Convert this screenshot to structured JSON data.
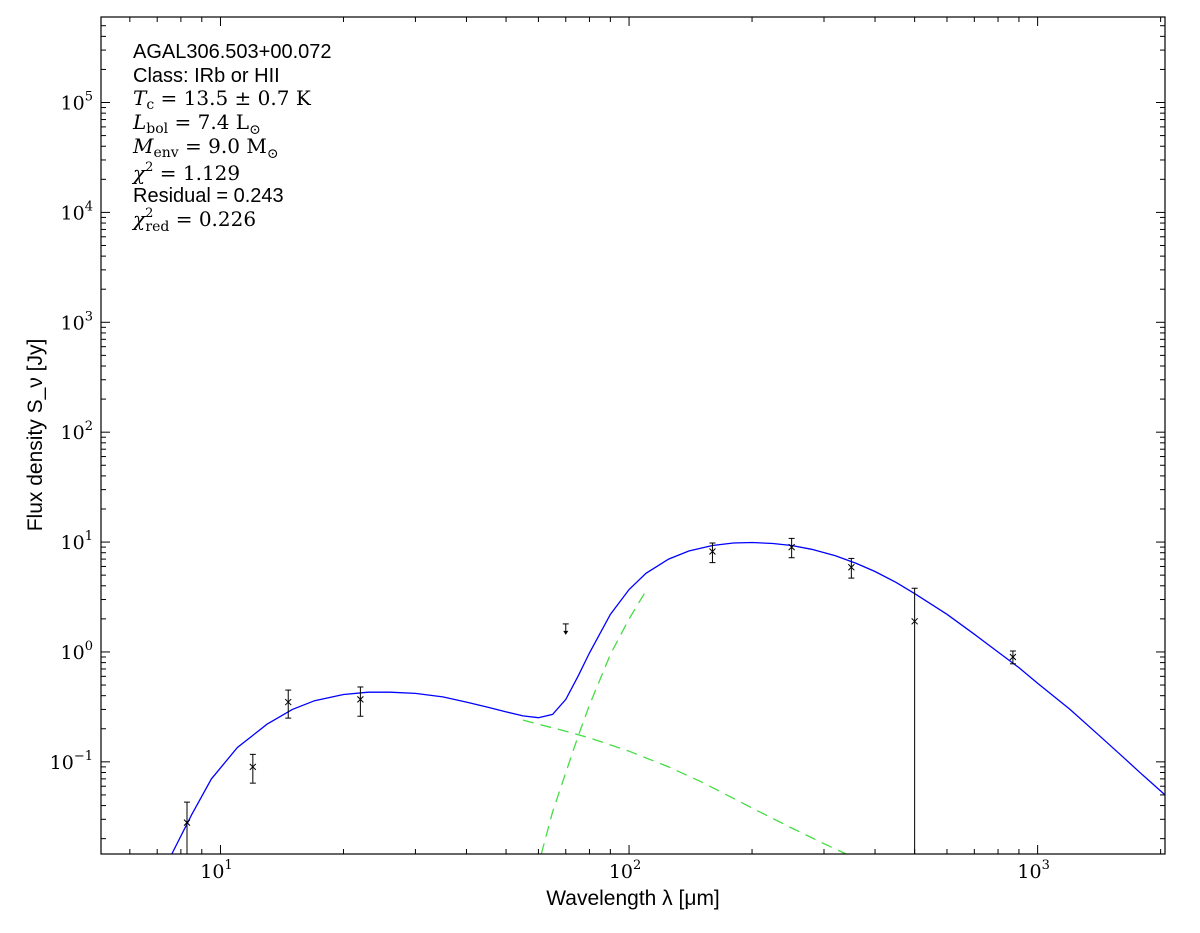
{
  "chart_data": {
    "type": "scatter",
    "source_name": "AGAL306.503+00.072",
    "xlabel": "Wavelength λ [μm]",
    "ylabel": "Flux density S_ν [Jy]",
    "xscale": "log",
    "yscale": "log",
    "xlim": [
      5.1,
      2050
    ],
    "ylim": [
      0.0145,
      600000
    ],
    "x_ticks": [
      {
        "value": 10,
        "base": "10",
        "exp": "1"
      },
      {
        "value": 100,
        "base": "10",
        "exp": "2"
      },
      {
        "value": 1000,
        "base": "10",
        "exp": "3"
      }
    ],
    "y_ticks": [
      {
        "value": 0.1,
        "base": "10",
        "exp": "−1"
      },
      {
        "value": 1,
        "base": "10",
        "exp": "0"
      },
      {
        "value": 10,
        "base": "10",
        "exp": "1"
      },
      {
        "value": 100,
        "base": "10",
        "exp": "2"
      },
      {
        "value": 1000,
        "base": "10",
        "exp": "3"
      },
      {
        "value": 10000,
        "base": "10",
        "exp": "4"
      },
      {
        "value": 100000,
        "base": "10",
        "exp": "5"
      }
    ],
    "annotations": {
      "name": "AGAL306.503+00.072",
      "class_line": "Class: IRb or HII",
      "tc": {
        "symbol": "T",
        "sub": "c",
        "value": " = 13.5 ± 0.7 K"
      },
      "lbol": {
        "symbol": "L",
        "sub": "bol",
        "value": " = 7.4 L",
        "unit_sub": "⊙"
      },
      "menv": {
        "symbol": "M",
        "sub": "env",
        "value": " = 9.0 M",
        "unit_sub": "⊙"
      },
      "chi2": {
        "symbol": "χ",
        "sup": "2",
        "value": " = 1.129"
      },
      "residual": "Residual = 0.243",
      "chi2red": {
        "symbol": "χ",
        "sup": "2",
        "sub": "red",
        "value": " = 0.226"
      }
    },
    "data_points": [
      {
        "x": 8.28,
        "y": 0.028,
        "err_lo": 0.0125,
        "err_hi": 0.043
      },
      {
        "x": 12.0,
        "y": 0.09,
        "err_lo": 0.064,
        "err_hi": 0.117
      },
      {
        "x": 14.65,
        "y": 0.35,
        "err_lo": 0.25,
        "err_hi": 0.45
      },
      {
        "x": 22.0,
        "y": 0.37,
        "err_lo": 0.26,
        "err_hi": 0.48
      },
      {
        "x": 160,
        "y": 8.2,
        "err_lo": 6.5,
        "err_hi": 9.8
      },
      {
        "x": 250,
        "y": 9.0,
        "err_lo": 7.2,
        "err_hi": 10.8
      },
      {
        "x": 350,
        "y": 5.9,
        "err_lo": 4.7,
        "err_hi": 7.1
      },
      {
        "x": 500,
        "y": 1.9,
        "err_lo": 0.0125,
        "err_hi": 3.8
      },
      {
        "x": 870,
        "y": 0.9,
        "err_lo": 0.78,
        "err_hi": 1.02
      }
    ],
    "upper_limits": [
      {
        "x": 70,
        "y": 1.8
      }
    ],
    "model": {
      "total_color": "#0000ff",
      "component_color": "#44dd44",
      "total": {
        "x": [
          7.6,
          8.5,
          9.5,
          11,
          13,
          15,
          17,
          20,
          23,
          26,
          30,
          35,
          40,
          45,
          50,
          55,
          60,
          65,
          70,
          75,
          80,
          90,
          100,
          110,
          125,
          140,
          160,
          180,
          200,
          225,
          250,
          280,
          320,
          360,
          400,
          450,
          500,
          600,
          700,
          800,
          900,
          1000,
          1200,
          1400,
          1600,
          1800,
          2050
        ],
        "y": [
          0.0145,
          0.033,
          0.07,
          0.135,
          0.22,
          0.3,
          0.36,
          0.41,
          0.43,
          0.43,
          0.42,
          0.39,
          0.35,
          0.315,
          0.285,
          0.262,
          0.252,
          0.27,
          0.37,
          0.6,
          0.98,
          2.2,
          3.7,
          5.2,
          7.0,
          8.3,
          9.3,
          9.8,
          9.9,
          9.7,
          9.3,
          8.6,
          7.5,
          6.4,
          5.4,
          4.3,
          3.4,
          2.2,
          1.45,
          1.0,
          0.72,
          0.52,
          0.3,
          0.18,
          0.115,
          0.077,
          0.05
        ]
      },
      "warm": {
        "x": [
          55,
          60,
          70,
          80,
          100,
          125,
          150,
          200,
          250,
          300,
          340
        ],
        "y": [
          0.24,
          0.22,
          0.19,
          0.165,
          0.125,
          0.09,
          0.066,
          0.038,
          0.025,
          0.018,
          0.0145
        ]
      },
      "cold": {
        "x": [
          61,
          65,
          70,
          75,
          80,
          90,
          100,
          110
        ],
        "y": [
          0.0145,
          0.035,
          0.08,
          0.17,
          0.33,
          0.95,
          2.0,
          3.6
        ]
      }
    }
  }
}
